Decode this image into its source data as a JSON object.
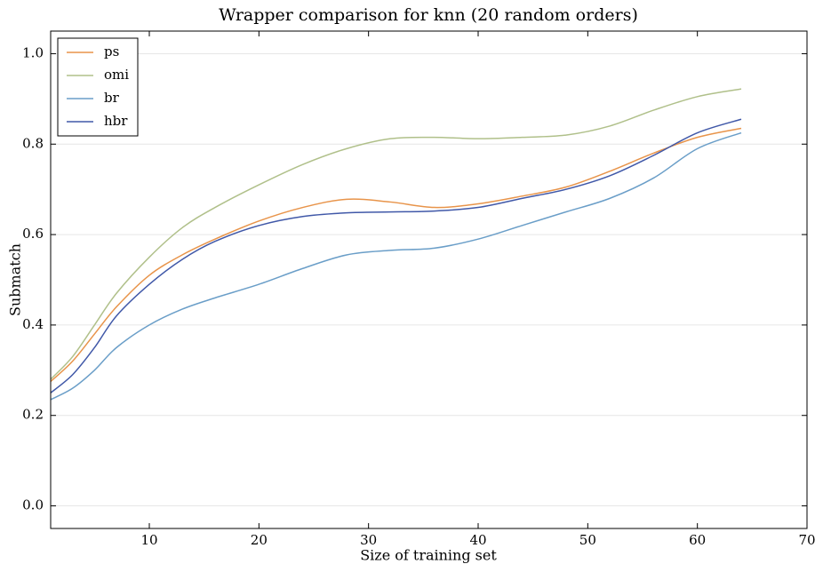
{
  "chart_data": {
    "type": "line",
    "title": "Wrapper comparison for knn (20 random orders)",
    "xlabel": "Size of training set",
    "ylabel": "Submatch",
    "x": [
      1,
      3,
      5,
      7,
      10,
      13,
      16,
      20,
      24,
      28,
      32,
      36,
      40,
      44,
      48,
      52,
      56,
      60,
      64
    ],
    "series": [
      {
        "name": "ps",
        "color": "#e8944a",
        "values": [
          0.275,
          0.32,
          0.38,
          0.44,
          0.51,
          0.555,
          0.59,
          0.63,
          0.66,
          0.678,
          0.672,
          0.66,
          0.668,
          0.685,
          0.705,
          0.74,
          0.78,
          0.815,
          0.835
        ]
      },
      {
        "name": "omi",
        "color": "#b0c08a",
        "values": [
          0.28,
          0.33,
          0.4,
          0.47,
          0.55,
          0.615,
          0.66,
          0.71,
          0.755,
          0.79,
          0.812,
          0.815,
          0.812,
          0.815,
          0.82,
          0.84,
          0.875,
          0.905,
          0.922
        ]
      },
      {
        "name": "br",
        "color": "#6a9ec8",
        "values": [
          0.235,
          0.26,
          0.3,
          0.35,
          0.4,
          0.435,
          0.46,
          0.49,
          0.525,
          0.555,
          0.565,
          0.57,
          0.59,
          0.62,
          0.65,
          0.68,
          0.725,
          0.79,
          0.825
        ]
      },
      {
        "name": "hbr",
        "color": "#4058a8",
        "values": [
          0.25,
          0.29,
          0.35,
          0.42,
          0.49,
          0.545,
          0.585,
          0.62,
          0.64,
          0.648,
          0.65,
          0.652,
          0.66,
          0.68,
          0.7,
          0.73,
          0.775,
          0.825,
          0.855
        ]
      }
    ],
    "xlim": [
      1,
      70
    ],
    "xticks": [
      10,
      20,
      30,
      40,
      50,
      60,
      70
    ],
    "ylim": [
      -0.05,
      1.05
    ],
    "yticks": [
      {
        "value": 0,
        "label": "0.0"
      },
      {
        "value": 0.2,
        "label": "0.2"
      },
      {
        "value": 0.4,
        "label": "0.4"
      },
      {
        "value": 0.6,
        "label": "0.6"
      },
      {
        "value": 0.8,
        "label": "0.8"
      },
      {
        "value": 1,
        "label": "1.0"
      }
    ],
    "grid": true,
    "legend": "upper left"
  }
}
